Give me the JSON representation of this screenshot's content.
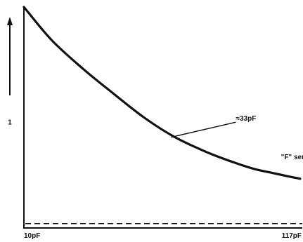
{
  "chart_data": {
    "type": "line",
    "x_scale": "reciprocal",
    "xlim": [
      10,
      117
    ],
    "x_ticks": [
      {
        "value": 10,
        "label": "10pF"
      },
      {
        "value": 117,
        "label": "117pF"
      }
    ],
    "y_ticks": [
      {
        "value": 1,
        "label": "1"
      }
    ],
    "ylim": [
      0.03,
      2.05
    ],
    "grid": false,
    "series": [
      {
        "name": "\"F\" series",
        "points": [
          {
            "x": 10.0,
            "y": 2.05
          },
          {
            "x": 11.0,
            "y": 1.75
          },
          {
            "x": 12.4,
            "y": 1.49
          },
          {
            "x": 14.2,
            "y": 1.26
          },
          {
            "x": 16.6,
            "y": 1.04
          },
          {
            "x": 20.0,
            "y": 0.86
          },
          {
            "x": 25.5,
            "y": 0.72
          },
          {
            "x": 32.7,
            "y": 0.63
          },
          {
            "x": 42.0,
            "y": 0.57
          },
          {
            "x": 58.0,
            "y": 0.53
          },
          {
            "x": 82.0,
            "y": 0.5
          },
          {
            "x": 117.0,
            "y": 0.48
          }
        ]
      }
    ],
    "reference_lines": [
      {
        "style": "dashed",
        "y": 0.07
      }
    ],
    "annotations": [
      {
        "text": "\"F\" series",
        "x": 67,
        "y": 0.66
      },
      {
        "text": "≈33pF",
        "x": 33,
        "y": 1.01,
        "pointer_x": 19.5,
        "pointer_y": 0.86
      }
    ],
    "y_axis_arrow": "up"
  }
}
